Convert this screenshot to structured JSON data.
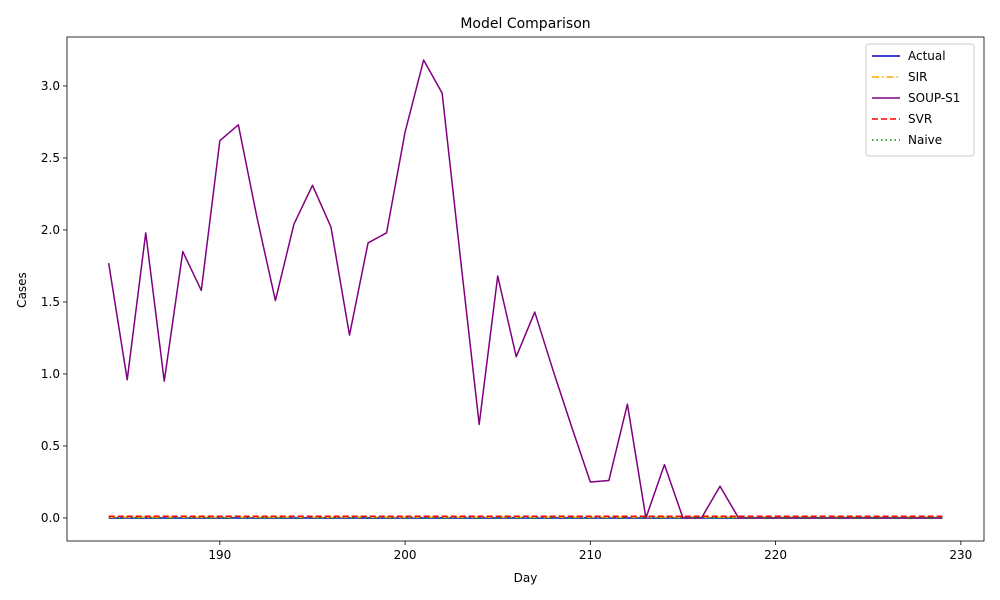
{
  "chart_data": {
    "type": "line",
    "title": "Model Comparison",
    "xlabel": "Day",
    "ylabel": "Cases",
    "xlim": [
      181.75,
      231.25
    ],
    "ylim": [
      -0.16,
      3.34
    ],
    "xticks": [
      190,
      200,
      210,
      220,
      230
    ],
    "xtick_labels": [
      "190",
      "200",
      "210",
      "220",
      "230"
    ],
    "yticks": [
      0.0,
      0.5,
      1.0,
      1.5,
      2.0,
      2.5,
      3.0
    ],
    "ytick_labels": [
      "0.0",
      "0.5",
      "1.0",
      "1.5",
      "2.0",
      "2.5",
      "3.0"
    ],
    "legend_position": "top-right",
    "x": [
      184,
      185,
      186,
      187,
      188,
      189,
      190,
      191,
      192,
      193,
      194,
      195,
      196,
      197,
      198,
      199,
      200,
      201,
      202,
      203,
      204,
      205,
      206,
      207,
      208,
      209,
      210,
      211,
      212,
      213,
      214,
      215,
      216,
      217,
      218,
      219,
      220,
      221,
      222,
      223,
      224,
      225,
      226,
      227,
      228,
      229
    ],
    "series": [
      {
        "name": "Actual",
        "color": "#0000cc",
        "style": "solid",
        "values": [
          0,
          0,
          0,
          0,
          0,
          0,
          0,
          0,
          0,
          0,
          0,
          0,
          0,
          0,
          0,
          0,
          0,
          0,
          0,
          0,
          0,
          0,
          0,
          0,
          0,
          0,
          0,
          0,
          0,
          0,
          0,
          0,
          0,
          0,
          0,
          0,
          0,
          0,
          0,
          0,
          0,
          0,
          0,
          0,
          0,
          0
        ]
      },
      {
        "name": "SIR",
        "color": "#ffa500",
        "style": "dashdot",
        "values": [
          0.005,
          0.005,
          0.005,
          0.005,
          0.005,
          0.005,
          0.005,
          0.005,
          0.005,
          0.005,
          0.005,
          0.005,
          0.005,
          0.005,
          0.005,
          0.005,
          0.005,
          0.005,
          0.005,
          0.005,
          0.005,
          0.005,
          0.005,
          0.005,
          0.005,
          0.005,
          0.005,
          0.005,
          0.005,
          0.005,
          0.005,
          0.005,
          0.005,
          0.005,
          0.005,
          0.005,
          0.005,
          0.005,
          0.005,
          0.005,
          0.005,
          0.005,
          0.005,
          0.005,
          0.005,
          0.005
        ]
      },
      {
        "name": "SOUP-S1",
        "color": "#800080",
        "style": "solid",
        "values": [
          1.77,
          0.96,
          1.98,
          0.95,
          1.85,
          1.58,
          2.62,
          2.73,
          2.09,
          1.51,
          2.04,
          2.31,
          2.02,
          1.27,
          1.91,
          1.98,
          2.68,
          3.18,
          2.95,
          1.79,
          0.65,
          1.68,
          1.12,
          1.43,
          1.02,
          0.63,
          0.25,
          0.26,
          0.79,
          0.0,
          0.37,
          0.0,
          0.0,
          0.22,
          0.0,
          0.0,
          0.0,
          0.0,
          0.0,
          0.0,
          0.0,
          0.0,
          0.0,
          0.0,
          0.0,
          0.0
        ]
      },
      {
        "name": "SVR",
        "color": "#ff0000",
        "style": "dashed",
        "values": [
          0.012,
          0.012,
          0.012,
          0.012,
          0.012,
          0.012,
          0.012,
          0.012,
          0.012,
          0.012,
          0.012,
          0.012,
          0.012,
          0.012,
          0.012,
          0.012,
          0.012,
          0.012,
          0.012,
          0.012,
          0.012,
          0.012,
          0.012,
          0.012,
          0.012,
          0.012,
          0.012,
          0.012,
          0.012,
          0.012,
          0.012,
          0.012,
          0.012,
          0.012,
          0.012,
          0.012,
          0.012,
          0.012,
          0.012,
          0.012,
          0.012,
          0.012,
          0.012,
          0.012,
          0.012,
          0.012
        ]
      },
      {
        "name": "Naive",
        "color": "#008000",
        "style": "dotted",
        "values": [
          0,
          0,
          0,
          0,
          0,
          0,
          0,
          0,
          0,
          0,
          0,
          0,
          0,
          0,
          0,
          0,
          0,
          0,
          0,
          0,
          0,
          0,
          0,
          0,
          0,
          0,
          0,
          0,
          0,
          0,
          0,
          0,
          0,
          0,
          0,
          0,
          0,
          0,
          0,
          0,
          0,
          0,
          0,
          0,
          0,
          0
        ]
      }
    ]
  }
}
